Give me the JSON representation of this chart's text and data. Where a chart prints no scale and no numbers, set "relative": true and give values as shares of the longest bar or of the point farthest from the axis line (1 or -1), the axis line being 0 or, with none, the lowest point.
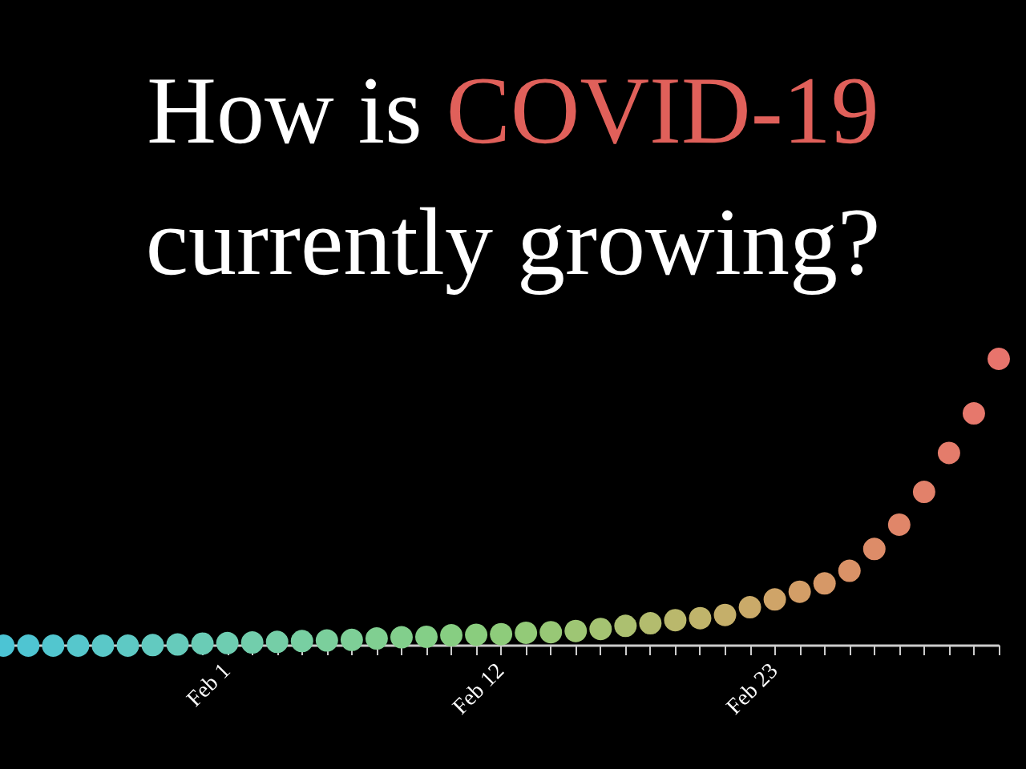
{
  "chart_data": {
    "type": "scatter",
    "title": "How is COVID-19 currently growing?",
    "relative": true,
    "marker": "circle",
    "categories": [
      null,
      null,
      null,
      null,
      null,
      null,
      null,
      null,
      null,
      "Feb 1",
      null,
      null,
      null,
      null,
      null,
      null,
      null,
      null,
      null,
      null,
      "Feb 12",
      null,
      null,
      null,
      null,
      null,
      null,
      null,
      null,
      null,
      null,
      "Feb 23",
      null,
      null,
      null,
      null,
      null,
      null,
      null,
      null,
      null
    ],
    "values": [
      0,
      0,
      0,
      0,
      0,
      0,
      0.002,
      0.004,
      0.007,
      0.009,
      0.011,
      0.013,
      0.016,
      0.018,
      0.02,
      0.025,
      0.029,
      0.031,
      0.036,
      0.038,
      0.04,
      0.045,
      0.047,
      0.051,
      0.058,
      0.069,
      0.078,
      0.089,
      0.096,
      0.107,
      0.134,
      0.161,
      0.188,
      0.217,
      0.261,
      0.337,
      0.422,
      0.536,
      0.672,
      0.81,
      1
    ],
    "colors": [
      "#4cc4d4",
      "#4fc5d2",
      "#52c6cf",
      "#56c7cc",
      "#5ac8c8",
      "#5ec9c4",
      "#62cac0",
      "#66cbbb",
      "#6accb6",
      "#6ecdb1",
      "#72ceac",
      "#75cea7",
      "#78cfa2",
      "#7bcf9c",
      "#7ecf97",
      "#80cf91",
      "#82cf8c",
      "#84cf87",
      "#87ce82",
      "#8acd7e",
      "#8ecc7b",
      "#93ca78",
      "#98c876",
      "#9ec674",
      "#a5c372",
      "#acc070",
      "#b3bc6e",
      "#bab86c",
      "#c0b46b",
      "#c5af6a",
      "#caaa69",
      "#cfa468",
      "#d39e67",
      "#d69867",
      "#da9267",
      "#dd8c68",
      "#e08669",
      "#e2816a",
      "#e47c6b",
      "#e6786c",
      "#e8746c"
    ]
  }
}
